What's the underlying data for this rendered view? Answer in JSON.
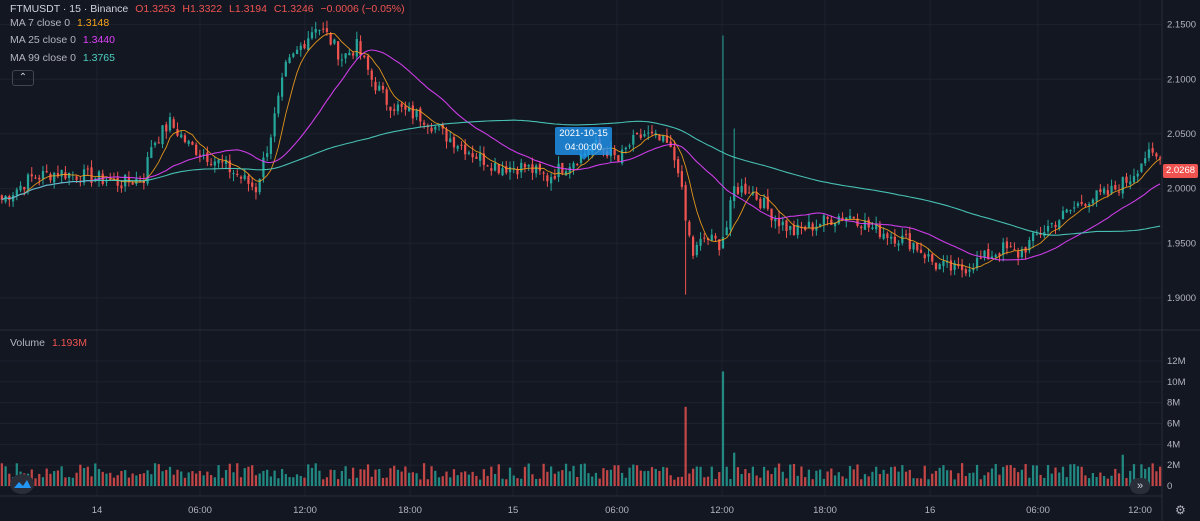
{
  "header": {
    "symbol": "FTMUSDT · 15 · Binance",
    "open": "O1.3253",
    "high": "H1.3322",
    "low": "L1.3194",
    "close": "C1.3246",
    "change": "−0.0006 (−0.05%)"
  },
  "indicators": [
    {
      "label": "MA 7 close 0",
      "value": "1.3148",
      "color": "#f7a21b"
    },
    {
      "label": "MA 25 close 0",
      "value": "1.3440",
      "color": "#e040fb"
    },
    {
      "label": "MA 99 close 0",
      "value": "1.3765",
      "color": "#4dd0c1"
    }
  ],
  "volume_legend": {
    "label": "Volume",
    "value": "1.193M"
  },
  "last_price_tag": "2.0268",
  "crosshair_tooltip": {
    "date": "2021-10-15",
    "time": "04:00:00"
  },
  "colors": {
    "up": "#26a69a",
    "down": "#ef5350",
    "background": "#131722",
    "grid": "#1e222d"
  },
  "chart_data": {
    "type": "candlestick",
    "price_axis": {
      "ticks": [
        2.15,
        2.1,
        2.05,
        2.0,
        1.95,
        1.9
      ],
      "tick_labels": [
        "2.1500",
        "2.1000",
        "2.0500",
        "2.0000",
        "1.9500",
        "1.9000"
      ]
    },
    "volume_axis": {
      "ticks": [
        12,
        10,
        8,
        6,
        4,
        2,
        0
      ],
      "tick_labels": [
        "12M",
        "10M",
        "8M",
        "6M",
        "4M",
        "2M",
        "0"
      ]
    },
    "time_axis": {
      "tick_labels": [
        "14",
        "06:00",
        "12:00",
        "18:00",
        "15",
        "06:00",
        "12:00",
        "18:00",
        "16",
        "06:00",
        "12:00"
      ]
    },
    "price_anchors": [
      [
        0,
        1.99
      ],
      [
        8,
        2.01
      ],
      [
        15,
        2.015
      ],
      [
        25,
        2.01
      ],
      [
        32,
        2.005
      ],
      [
        38,
        2.01
      ],
      [
        40,
        2.04
      ],
      [
        45,
        2.06
      ],
      [
        50,
        2.04
      ],
      [
        55,
        2.03
      ],
      [
        60,
        2.02
      ],
      [
        68,
        2.0
      ],
      [
        72,
        2.05
      ],
      [
        76,
        2.11
      ],
      [
        80,
        2.13
      ],
      [
        84,
        2.15
      ],
      [
        87,
        2.14
      ],
      [
        91,
        2.12
      ],
      [
        95,
        2.13
      ],
      [
        99,
        2.1
      ],
      [
        103,
        2.08
      ],
      [
        108,
        2.07
      ],
      [
        113,
        2.065
      ],
      [
        118,
        2.05
      ],
      [
        123,
        2.04
      ],
      [
        127,
        2.03
      ],
      [
        133,
        2.02
      ],
      [
        140,
        2.02
      ],
      [
        146,
        2.01
      ],
      [
        150,
        2.02
      ],
      [
        155,
        2.03
      ],
      [
        158,
        2.04
      ],
      [
        162,
        2.035
      ],
      [
        165,
        2.025
      ],
      [
        168,
        2.04
      ],
      [
        172,
        2.05
      ],
      [
        178,
        2.04
      ],
      [
        181,
        2.02
      ],
      [
        183,
        1.97
      ],
      [
        185,
        1.94
      ],
      [
        188,
        1.955
      ],
      [
        192,
        1.95
      ],
      [
        194,
        1.965
      ],
      [
        196,
        2.0
      ],
      [
        200,
        2.0
      ],
      [
        204,
        1.985
      ],
      [
        208,
        1.97
      ],
      [
        212,
        1.96
      ],
      [
        216,
        1.965
      ],
      [
        220,
        1.97
      ],
      [
        224,
        1.975
      ],
      [
        228,
        1.975
      ],
      [
        232,
        1.965
      ],
      [
        236,
        1.96
      ],
      [
        240,
        1.955
      ],
      [
        244,
        1.95
      ],
      [
        250,
        1.93
      ],
      [
        256,
        1.925
      ],
      [
        262,
        1.935
      ],
      [
        268,
        1.945
      ],
      [
        272,
        1.94
      ],
      [
        278,
        1.96
      ],
      [
        284,
        1.975
      ],
      [
        290,
        1.99
      ],
      [
        296,
        1.995
      ],
      [
        302,
        2.01
      ],
      [
        306,
        2.03
      ],
      [
        310,
        2.027
      ]
    ],
    "spikes": [
      {
        "bar": 183,
        "low": 1.903
      },
      {
        "bar": 193,
        "high": 2.14
      },
      {
        "bar": 196,
        "high": 2.055
      }
    ],
    "volume_spikes": [
      {
        "bar": 183,
        "value": 7.6
      },
      {
        "bar": 193,
        "value": 11.0
      },
      {
        "bar": 196,
        "value": 3.2
      },
      {
        "bar": 300,
        "value": 3.0
      }
    ],
    "ma_periods": [
      7,
      25,
      99
    ]
  }
}
